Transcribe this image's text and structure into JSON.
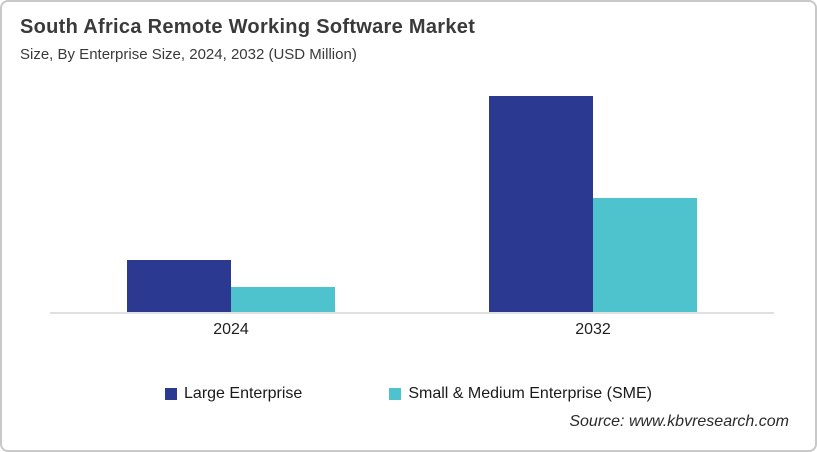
{
  "header": {
    "title": "South Africa Remote Working Software Market",
    "subtitle": "Size, By Enterprise Size, 2024, 2032 (USD Million)"
  },
  "chart_data": {
    "type": "bar",
    "title": "South Africa Remote Working Software Market",
    "subtitle": "Size, By Enterprise Size, 2024, 2032 (USD Million)",
    "categories": [
      "2024",
      "2032"
    ],
    "series": [
      {
        "name": "Large Enterprise",
        "color": "#2B3990",
        "values": [
          52,
          216
        ]
      },
      {
        "name": "Small & Medium Enterprise (SME)",
        "color": "#4FC3CD",
        "values": [
          25,
          114
        ]
      }
    ],
    "xlabel": "",
    "ylabel": "",
    "ylim": [
      0,
      230
    ],
    "y_axis_visible": false,
    "x_axis_visible": true,
    "gridlines": false,
    "value_labels": false,
    "legend_position": "bottom"
  },
  "footer": {
    "source": "Source: www.kbvresearch.com"
  }
}
